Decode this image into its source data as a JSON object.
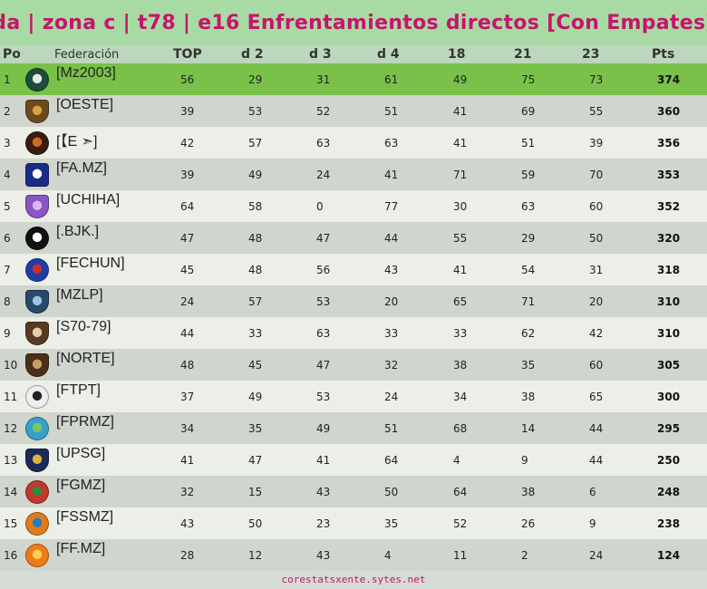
{
  "title": "da | zona c | t78 | e16 Enfrentamientos directos [Con Empates]",
  "headers": {
    "pos": "Pos",
    "federacion": "Federación",
    "cols": [
      "TOP",
      "d  2",
      "d  3",
      "d  4",
      "18",
      "21",
      "23"
    ],
    "pts": "Pts"
  },
  "rows": [
    {
      "pos": "1",
      "name": "[Mz2003]",
      "logo": "mz2003-logo-icon",
      "logo_colors": [
        "#1d4d3a",
        "#e8e8e8"
      ],
      "vals": [
        "56",
        "29",
        "31",
        "61",
        "49",
        "75",
        "73"
      ],
      "pts": "374"
    },
    {
      "pos": "2",
      "name": "[OESTE]",
      "logo": "oeste-logo-icon",
      "logo_colors": [
        "#6b4a1e",
        "#d8a53a"
      ],
      "vals": [
        "39",
        "53",
        "52",
        "51",
        "41",
        "69",
        "55"
      ],
      "pts": "360"
    },
    {
      "pos": "3",
      "name": "[【E ➣]",
      "logo": "e-logo-icon",
      "logo_colors": [
        "#3a1d10",
        "#d06a1c"
      ],
      "vals": [
        "42",
        "57",
        "63",
        "63",
        "41",
        "51",
        "39"
      ],
      "pts": "356"
    },
    {
      "pos": "4",
      "name": "[FA.MZ]",
      "logo": "fa-mz-logo-icon",
      "logo_colors": [
        "#1a2c8a",
        "#ffffff"
      ],
      "vals": [
        "39",
        "49",
        "24",
        "41",
        "71",
        "59",
        "70"
      ],
      "pts": "353"
    },
    {
      "pos": "5",
      "name": "[UCHIHA]",
      "logo": "uchiha-logo-icon",
      "logo_colors": [
        "#8a55c4",
        "#d9b8ee"
      ],
      "vals": [
        "64",
        "58",
        "0",
        "77",
        "30",
        "63",
        "60"
      ],
      "pts": "352"
    },
    {
      "pos": "6",
      "name": "[.BJK.]",
      "logo": "bjk-logo-icon",
      "logo_colors": [
        "#111111",
        "#ffffff"
      ],
      "vals": [
        "47",
        "48",
        "47",
        "44",
        "55",
        "29",
        "50"
      ],
      "pts": "320"
    },
    {
      "pos": "7",
      "name": "[FECHUN]",
      "logo": "fechun-logo-icon",
      "logo_colors": [
        "#1e3fa6",
        "#d42a2a"
      ],
      "vals": [
        "45",
        "48",
        "56",
        "43",
        "41",
        "54",
        "31"
      ],
      "pts": "318"
    },
    {
      "pos": "8",
      "name": "[MZLP]",
      "logo": "mzlp-logo-icon",
      "logo_colors": [
        "#27496b",
        "#9cc4e0"
      ],
      "vals": [
        "24",
        "57",
        "53",
        "20",
        "65",
        "71",
        "20"
      ],
      "pts": "310"
    },
    {
      "pos": "9",
      "name": "[S70-79]",
      "logo": "s70-79-logo-icon",
      "logo_colors": [
        "#5a3a22",
        "#e0cfa8"
      ],
      "vals": [
        "44",
        "33",
        "63",
        "33",
        "33",
        "62",
        "42"
      ],
      "pts": "310"
    },
    {
      "pos": "10",
      "name": "[NORTE]",
      "logo": "norte-logo-icon",
      "logo_colors": [
        "#4a2f1a",
        "#c9a062"
      ],
      "vals": [
        "48",
        "45",
        "47",
        "32",
        "38",
        "35",
        "60"
      ],
      "pts": "305"
    },
    {
      "pos": "11",
      "name": "[FTPT]",
      "logo": "ftpt-logo-icon",
      "logo_colors": [
        "#eeeeee",
        "#222222"
      ],
      "vals": [
        "37",
        "49",
        "53",
        "24",
        "34",
        "38",
        "65"
      ],
      "pts": "300"
    },
    {
      "pos": "12",
      "name": "[FPRMZ]",
      "logo": "fprmz-logo-icon",
      "logo_colors": [
        "#3aa0c8",
        "#7cc46a"
      ],
      "vals": [
        "34",
        "35",
        "49",
        "51",
        "68",
        "14",
        "44"
      ],
      "pts": "295"
    },
    {
      "pos": "13",
      "name": "[UPSG]",
      "logo": "upsg-logo-icon",
      "logo_colors": [
        "#1b2a5a",
        "#d8b440"
      ],
      "vals": [
        "41",
        "47",
        "41",
        "64",
        "4",
        "9",
        "44"
      ],
      "pts": "250"
    },
    {
      "pos": "14",
      "name": "[FGMZ]",
      "logo": "fgmz-logo-icon",
      "logo_colors": [
        "#c0392b",
        "#2e8b3a"
      ],
      "vals": [
        "32",
        "15",
        "43",
        "50",
        "64",
        "38",
        "6"
      ],
      "pts": "248"
    },
    {
      "pos": "15",
      "name": "[FSSMZ]",
      "logo": "fssmz-logo-icon",
      "logo_colors": [
        "#e07b1c",
        "#2a7ab8"
      ],
      "vals": [
        "43",
        "50",
        "23",
        "35",
        "52",
        "26",
        "9"
      ],
      "pts": "238"
    },
    {
      "pos": "16",
      "name": "[FF.MZ]",
      "logo": "ff-mz-logo-icon",
      "logo_colors": [
        "#f07a18",
        "#fbd04a"
      ],
      "vals": [
        "28",
        "12",
        "43",
        "4",
        "11",
        "2",
        "24"
      ],
      "pts": "124"
    }
  ],
  "footer": "corestatsxente.sytes.net"
}
